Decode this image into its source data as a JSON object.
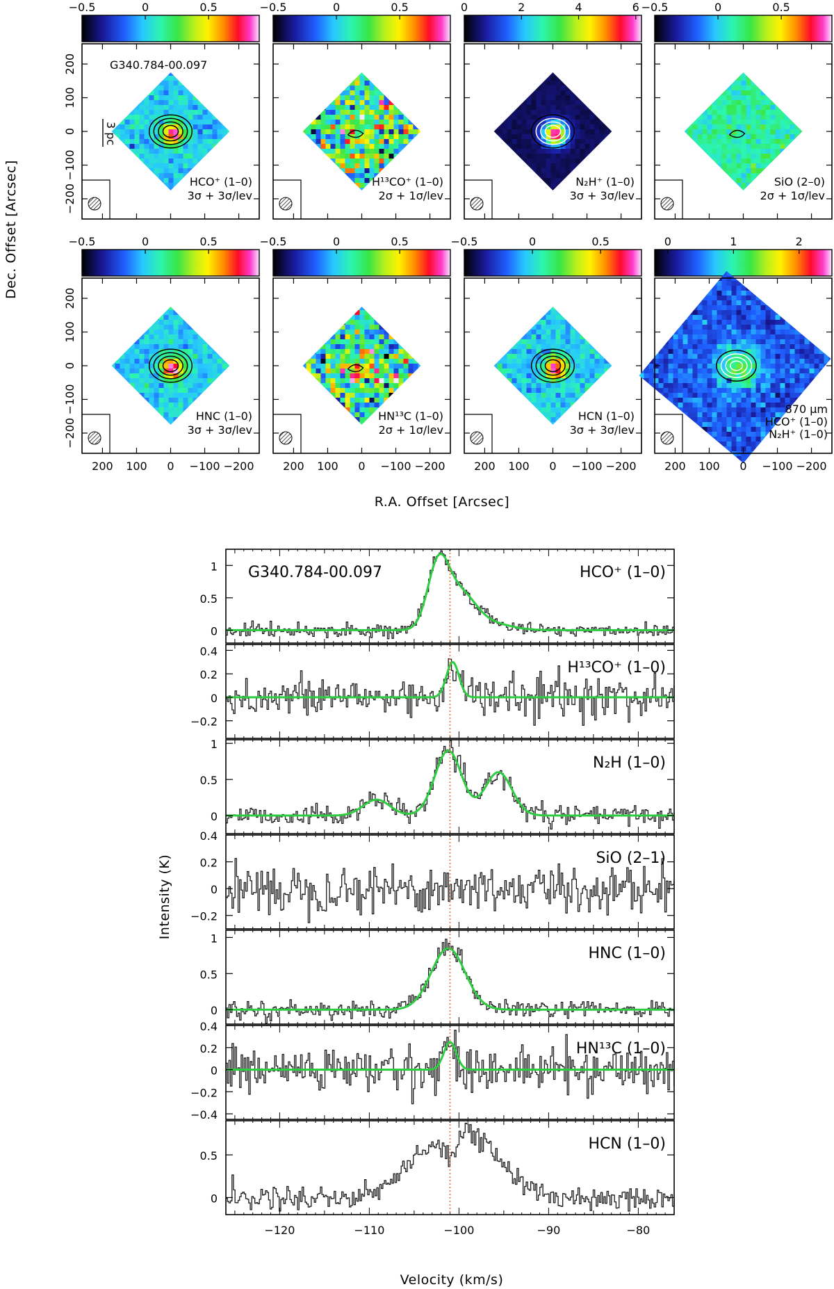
{
  "colors": {
    "fit": "#2ecc40",
    "reference_line": "#e0703a",
    "spectrum": "#1a1a1a"
  },
  "chart_data": [
    {
      "type": "heatmap",
      "title": "",
      "xlabel": "R.A. Offset [Arcsec]",
      "ylabel": "Dec. Offset [Arcsec]",
      "source": "G340.784-00.097",
      "scale_bar": "3 pc",
      "panels": [
        {
          "line": "HCO⁺ (1–0)",
          "levels": "3σ + 3σ/lev",
          "colorbar_ticks": [
            "−0.5",
            "0",
            "0.5"
          ],
          "colorbar_range": [
            -0.5,
            0.9
          ],
          "peak": 0.85
        },
        {
          "line": "H¹³CO⁺ (1–0)",
          "levels": "2σ + 1σ/lev",
          "colorbar_ticks": [
            "−0.5",
            "0",
            "0.5"
          ],
          "colorbar_range": [
            -0.5,
            0.9
          ],
          "peak": 0.6
        },
        {
          "line": "N₂H⁺ (1–0)",
          "levels": "3σ + 3σ/lev",
          "colorbar_ticks": [
            "0",
            "2",
            "4",
            "6"
          ],
          "colorbar_range": [
            0,
            6.2
          ],
          "peak": 5.5
        },
        {
          "line": "SiO (2–0)",
          "levels": "2σ + 1σ/lev",
          "colorbar_ticks": [
            "−0.5",
            "0",
            "0.5"
          ],
          "colorbar_range": [
            -0.5,
            0.9
          ],
          "peak": 0.3
        },
        {
          "line": "HNC (1–0)",
          "levels": "3σ + 3σ/lev",
          "colorbar_ticks": [
            "−0.5",
            "0",
            "0.5"
          ],
          "colorbar_range": [
            -0.5,
            0.9
          ],
          "peak": 0.85
        },
        {
          "line": "HN¹³C (1–0)",
          "levels": "2σ + 1σ/lev",
          "colorbar_ticks": [
            "−0.5",
            "0",
            "0.5"
          ],
          "colorbar_range": [
            -0.5,
            0.9
          ],
          "peak": 0.55
        },
        {
          "line": "HCN (1–0)",
          "levels": "3σ + 3σ/lev",
          "colorbar_ticks": [
            "−0.5",
            "0",
            "0.5"
          ],
          "colorbar_range": [
            -0.5,
            0.8
          ],
          "peak": 0.75
        },
        {
          "line": "870 μm",
          "levels": "",
          "contours": [
            "HCO⁺ (1–0)",
            "N₂H⁺ (1–0)"
          ],
          "colorbar_ticks": [
            "0",
            "1",
            "2"
          ],
          "colorbar_range": [
            -0.2,
            2.5
          ],
          "peak": 2.2
        }
      ],
      "x_ticks": [
        "200",
        "100",
        "0",
        "−100",
        "−200"
      ],
      "y_ticks": [
        "200",
        "100",
        "0",
        "−100",
        "−200"
      ],
      "xlim": [
        260,
        -260
      ],
      "ylim": [
        -260,
        260
      ]
    },
    {
      "type": "line",
      "title": "",
      "xlabel": "Velocity (km/s)",
      "ylabel": "Intensity (K)",
      "xlim": [
        -126,
        -76
      ],
      "x_ticks": [
        -120,
        -110,
        -100,
        -90,
        -80
      ],
      "reference_velocity": -101,
      "source": "G340.784-00.097",
      "series": [
        {
          "name": "HCO⁺ (1–0)",
          "ylim": [
            -0.2,
            1.25
          ],
          "y_ticks": [
            0,
            0.5,
            1
          ],
          "noise": 0.05,
          "components": [
            {
              "v": -102.3,
              "amp": 1.0,
              "sigma": 1.2
            },
            {
              "v": -99.8,
              "amp": 0.5,
              "sigma": 1.6
            },
            {
              "v": -97,
              "amp": 0.12,
              "sigma": 2.4
            }
          ],
          "fit": true
        },
        {
          "name": "H¹³CO⁺ (1–0)",
          "ylim": [
            -0.35,
            0.45
          ],
          "y_ticks": [
            -0.2,
            0,
            0.2,
            0.4
          ],
          "noise": 0.09,
          "components": [
            {
              "v": -100.7,
              "amp": 0.3,
              "sigma": 0.7
            }
          ],
          "fit": true
        },
        {
          "name": "N₂H (1–0)",
          "ylim": [
            -0.25,
            1.05
          ],
          "y_ticks": [
            0,
            0.5,
            1
          ],
          "noise": 0.07,
          "components": [
            {
              "v": -101.2,
              "amp": 0.9,
              "sigma": 1.5
            },
            {
              "v": -95.6,
              "amp": 0.6,
              "sigma": 1.5
            },
            {
              "v": -109.2,
              "amp": 0.22,
              "sigma": 1.5
            }
          ],
          "fit": true
        },
        {
          "name": "SiO (2–1)",
          "ylim": [
            -0.3,
            0.4
          ],
          "y_ticks": [
            -0.2,
            0,
            0.2,
            0.4
          ],
          "noise": 0.09,
          "components": [],
          "fit": false
        },
        {
          "name": "HNC (1–0)",
          "ylim": [
            -0.2,
            1.1
          ],
          "y_ticks": [
            0,
            0.5,
            1
          ],
          "noise": 0.06,
          "components": [
            {
              "v": -101.2,
              "amp": 0.85,
              "sigma": 1.9
            }
          ],
          "fit": true
        },
        {
          "name": "HN¹³C (1–0)",
          "ylim": [
            -0.45,
            0.4
          ],
          "y_ticks": [
            -0.4,
            -0.2,
            0,
            0.2,
            0.4
          ],
          "noise": 0.1,
          "components": [
            {
              "v": -101.0,
              "amp": 0.25,
              "sigma": 0.7
            }
          ],
          "fit": true
        },
        {
          "name": "HCN (1–0)",
          "ylim": [
            -0.2,
            0.9
          ],
          "y_ticks": [
            0,
            0.5
          ],
          "noise": 0.07,
          "components": [
            {
              "v": -102.3,
              "amp": 0.55,
              "sigma": 3.6
            },
            {
              "v": -97.5,
              "amp": 0.45,
              "sigma": 3.0
            },
            {
              "v": -100.9,
              "amp": -0.25,
              "sigma": 0.6
            }
          ],
          "fit": false
        }
      ]
    }
  ]
}
